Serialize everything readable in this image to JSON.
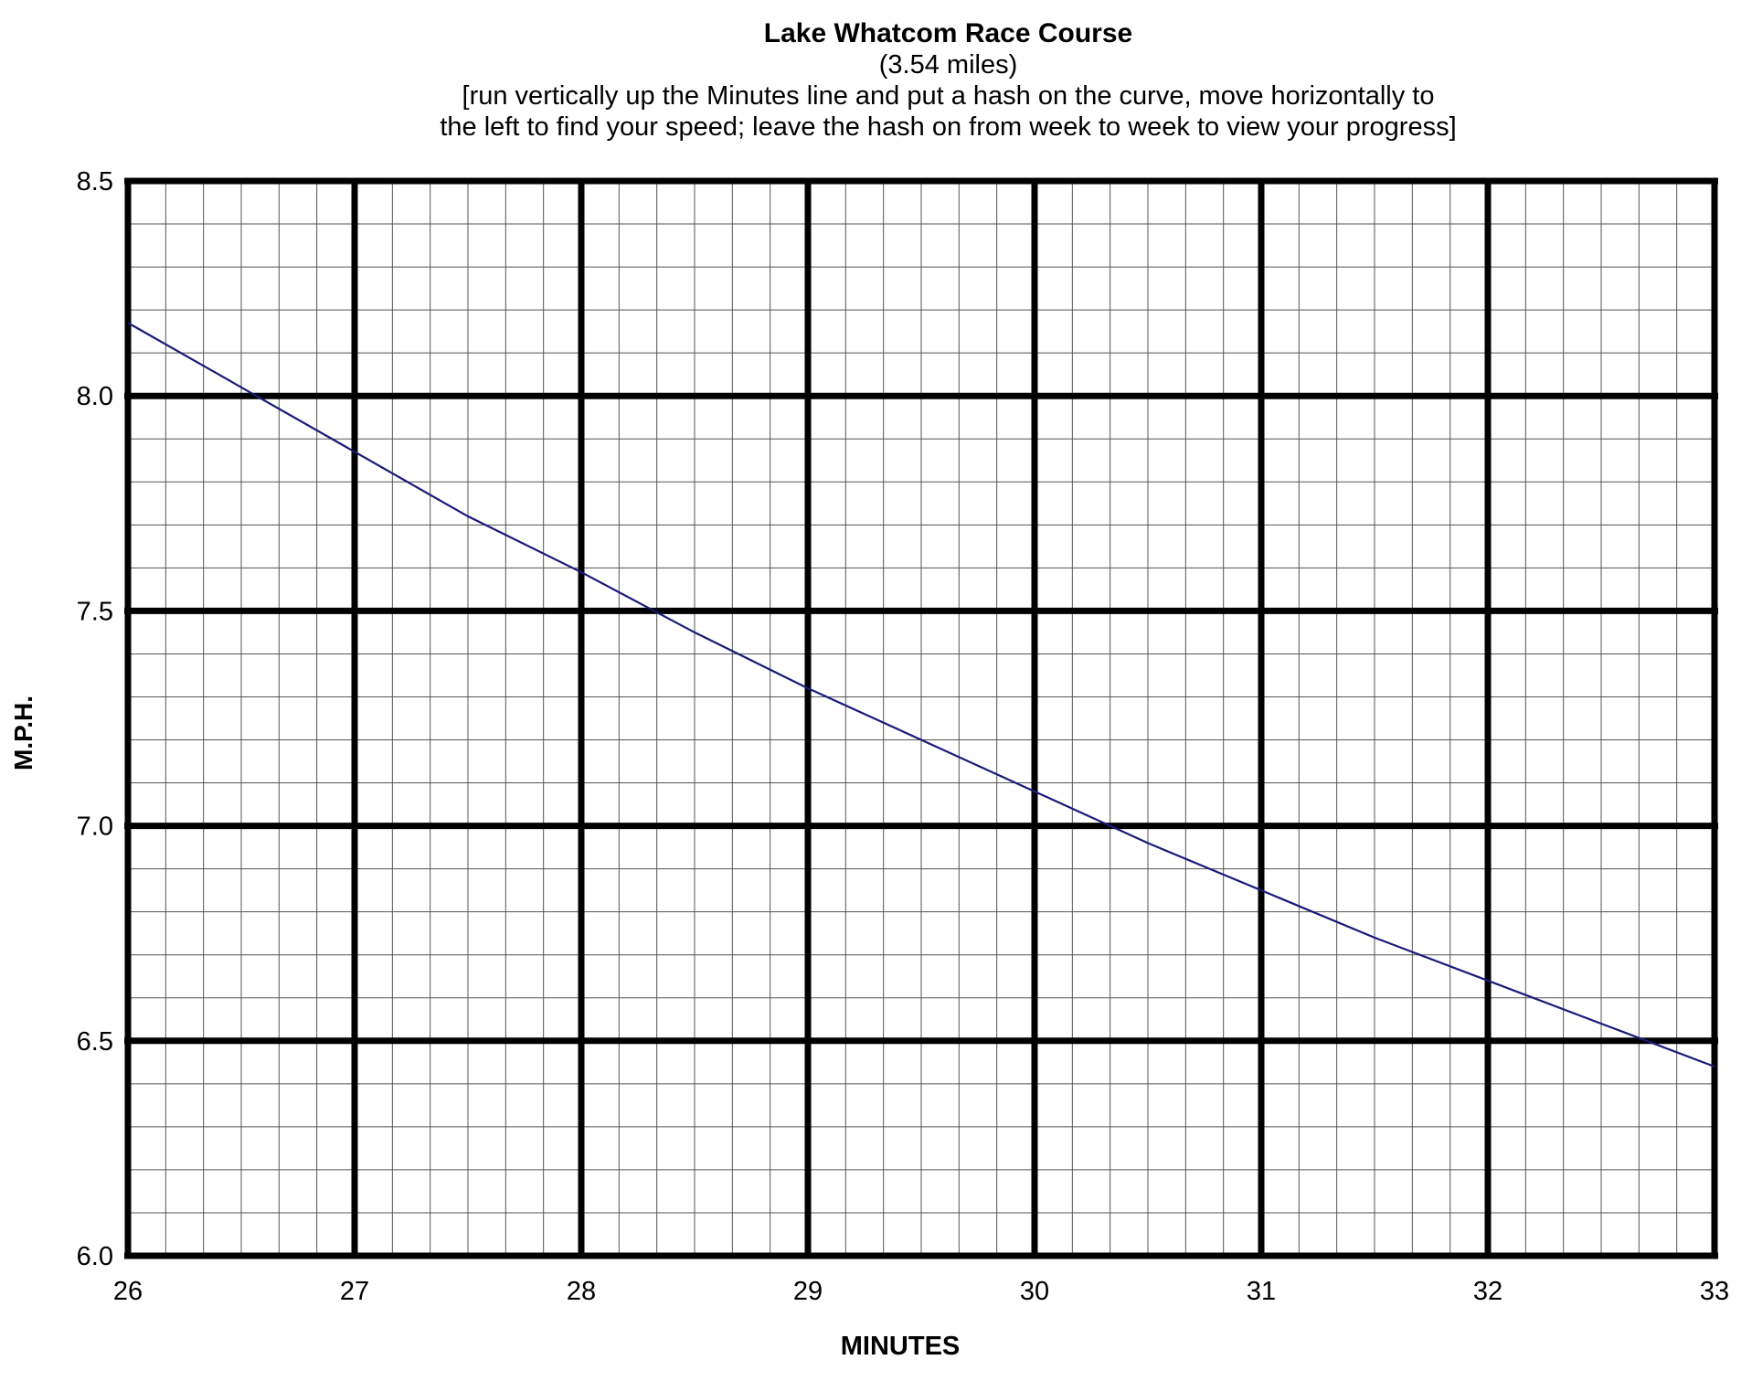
{
  "chart_data": {
    "type": "line",
    "title": "Lake Whatcom Race Course",
    "subtitle": "(3.54 miles)",
    "note_lines": [
      "[run vertically up the Minutes line and put a hash on the curve, move horizontally to",
      "the left to find your speed; leave the hash on from week to week to view your progress]"
    ],
    "xlabel": "MINUTES",
    "ylabel": "M.P.H.",
    "xlim": [
      26,
      33
    ],
    "ylim": [
      6.0,
      8.5
    ],
    "x_ticks": [
      "26",
      "27",
      "28",
      "29",
      "30",
      "31",
      "32",
      "33"
    ],
    "y_ticks": [
      "6.0",
      "6.5",
      "7.0",
      "7.5",
      "8.0",
      "8.5"
    ],
    "grid": true,
    "distance_miles": 3.54,
    "x": [
      26,
      26.5,
      27,
      27.5,
      28,
      28.5,
      29,
      29.5,
      30,
      30.5,
      31,
      31.5,
      32,
      32.5,
      33
    ],
    "series": [
      {
        "values": [
          8.17,
          8.02,
          7.87,
          7.72,
          7.59,
          7.45,
          7.32,
          7.2,
          7.08,
          6.96,
          6.85,
          6.74,
          6.64,
          6.54,
          6.44
        ],
        "color": "#1a1a7a"
      }
    ]
  }
}
